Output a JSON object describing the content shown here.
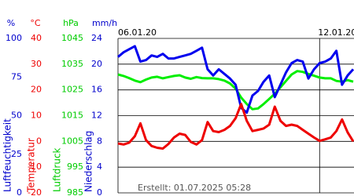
{
  "chart_data": {
    "type": "line",
    "footer": "Erstellt: 01.07.2025 05:28",
    "grid": true,
    "grid_axis": 3,
    "categories": [
      "06.01.20",
      null,
      null,
      null,
      null,
      null,
      null,
      null,
      null,
      null,
      null,
      null,
      null,
      null,
      null,
      null,
      null,
      null,
      null,
      null,
      null,
      null,
      null,
      null,
      null,
      null,
      null,
      null,
      null,
      null,
      null,
      null,
      null,
      null,
      null,
      null,
      "12.01.20",
      null,
      null,
      null,
      null,
      null,
      null
    ],
    "axes": [
      {
        "unit": "%",
        "label": "Luftfeuchtigkeit",
        "color": "#0000cc",
        "lim": [
          0,
          100
        ],
        "ticks": [
          0,
          25,
          50,
          75,
          100
        ]
      },
      {
        "unit": "°C",
        "label": "Temperatur",
        "color": "#ee0000",
        "lim": [
          -20,
          40
        ],
        "ticks": [
          -20,
          -10,
          0,
          10,
          20,
          30,
          40
        ]
      },
      {
        "unit": "hPa",
        "label": "Luftdruck",
        "color": "#00cc00",
        "lim": [
          985,
          1045
        ],
        "ticks": [
          985,
          995,
          1005,
          1015,
          1025,
          1035,
          1045
        ]
      },
      {
        "unit": "mm/h",
        "label": "Niederschlag",
        "color": "#0000cc",
        "lim": [
          0,
          24
        ],
        "ticks": [
          0,
          4,
          8,
          12,
          16,
          20,
          24
        ]
      }
    ],
    "series": [
      {
        "name": "Luftdruck",
        "axis": 2,
        "color": "#00ee00",
        "values": [
          1031.0,
          1030.4,
          1029.6,
          1028.6,
          1028.0,
          1029.0,
          1029.8,
          1030.1,
          1029.5,
          1030.0,
          1030.4,
          1030.7,
          1029.8,
          1029.3,
          1030.0,
          1029.6,
          1029.5,
          1029.5,
          1029.2,
          1028.6,
          1027.5,
          1025.5,
          1022.0,
          1019.5,
          1017.5,
          1017.8,
          1019.5,
          1021.5,
          1023.5,
          1026.0,
          1028.5,
          1031.0,
          1032.3,
          1032.0,
          1031.2,
          1030.5,
          1029.8,
          1029.5,
          1029.5,
          1028.5,
          1028.2,
          1028.8,
          1028.2
        ]
      },
      {
        "name": "Luftfeuchtigkeit",
        "axis": 0,
        "color": "#0000ee",
        "values": [
          88,
          91,
          93,
          95,
          85,
          86,
          89,
          88,
          90,
          87,
          87,
          88,
          89,
          90,
          92,
          94,
          80,
          76,
          80,
          77,
          74,
          70,
          55,
          52,
          63,
          66,
          72,
          76,
          62,
          70,
          78,
          84,
          86,
          85,
          74,
          80,
          84,
          85,
          87,
          92,
          70,
          76,
          80
        ]
      },
      {
        "name": "Temperatur",
        "axis": 1,
        "color": "#ee0000",
        "values": [
          -0.8,
          -1.2,
          -0.5,
          2.0,
          7.0,
          0.5,
          -1.8,
          -2.5,
          -2.8,
          -1.0,
          1.5,
          3.0,
          2.5,
          -0.2,
          -1.2,
          0.5,
          7.5,
          4.0,
          3.6,
          4.5,
          6.0,
          9.0,
          14.5,
          8.0,
          4.0,
          4.5,
          5.0,
          6.5,
          13.5,
          8.0,
          6.0,
          6.5,
          6.0,
          4.5,
          3.0,
          1.5,
          0.2,
          0.8,
          1.5,
          4.0,
          8.5,
          3.5,
          0
        ]
      }
    ]
  }
}
